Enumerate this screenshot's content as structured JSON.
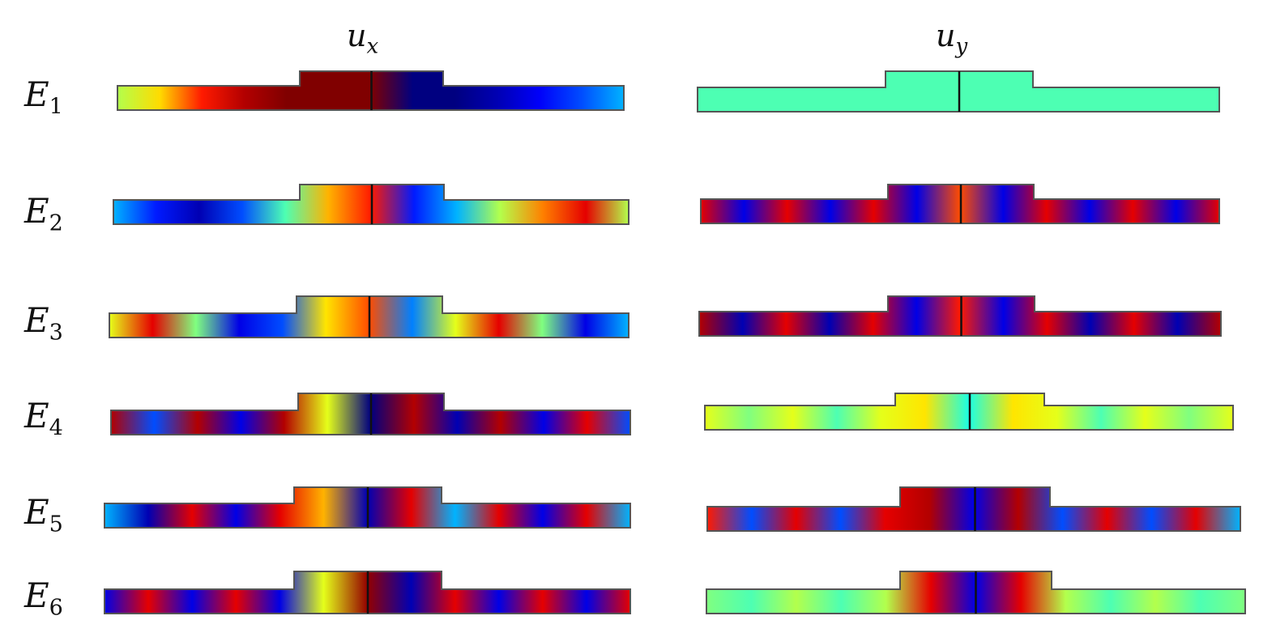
{
  "columns": [
    {
      "id": "ux",
      "label": "u",
      "subscript": "x"
    },
    {
      "id": "uy",
      "label": "u",
      "subscript": "y"
    }
  ],
  "rows": [
    {
      "label": "E",
      "subscript": "1",
      "ux": [
        0.55,
        0.66,
        0.85,
        0.95,
        1.0,
        1.0,
        1.0,
        0.0,
        0.0,
        0.05,
        0.12,
        0.2,
        0.3
      ],
      "uy": [
        0.45,
        0.45,
        0.45,
        0.45,
        0.45,
        0.45,
        0.45,
        0.45,
        0.45,
        0.45,
        0.45,
        0.45,
        0.45
      ]
    },
    {
      "label": "E",
      "subscript": "2",
      "ux": [
        0.3,
        0.15,
        0.05,
        0.2,
        0.45,
        0.7,
        0.85,
        0.15,
        0.3,
        0.55,
        0.75,
        0.9,
        0.55
      ],
      "uy": [
        0.9,
        0.1,
        0.9,
        0.1,
        0.9,
        0.1,
        0.8,
        0.1,
        0.9,
        0.1,
        0.9,
        0.1,
        0.9
      ]
    },
    {
      "label": "E",
      "subscript": "3",
      "ux": [
        0.6,
        0.9,
        0.5,
        0.1,
        0.2,
        0.65,
        0.8,
        0.25,
        0.6,
        0.9,
        0.5,
        0.1,
        0.3
      ],
      "uy": [
        0.95,
        0.05,
        0.9,
        0.05,
        0.9,
        0.1,
        0.85,
        0.1,
        0.9,
        0.05,
        0.9,
        0.05,
        0.95
      ]
    },
    {
      "label": "E",
      "subscript": "4",
      "ux": [
        0.95,
        0.2,
        0.95,
        0.1,
        0.95,
        0.6,
        0.0,
        0.95,
        0.05,
        0.95,
        0.1,
        0.9,
        0.2
      ],
      "uy": [
        0.6,
        0.5,
        0.6,
        0.45,
        0.6,
        0.65,
        0.4,
        0.65,
        0.6,
        0.45,
        0.6,
        0.5,
        0.6
      ]
    },
    {
      "label": "E",
      "subscript": "5",
      "ux": [
        0.3,
        0.05,
        0.9,
        0.1,
        0.9,
        0.7,
        0.05,
        0.9,
        0.3,
        0.9,
        0.1,
        0.9,
        0.3
      ],
      "uy": [
        0.85,
        0.2,
        0.9,
        0.2,
        0.9,
        0.95,
        0.1,
        0.95,
        0.2,
        0.9,
        0.2,
        0.9,
        0.3
      ]
    },
    {
      "label": "E",
      "subscript": "6",
      "ux": [
        0.1,
        0.9,
        0.1,
        0.9,
        0.1,
        0.6,
        0.98,
        0.05,
        0.9,
        0.1,
        0.9,
        0.1,
        0.9
      ],
      "uy": [
        0.5,
        0.45,
        0.55,
        0.45,
        0.55,
        0.9,
        0.1,
        0.9,
        0.55,
        0.45,
        0.55,
        0.45,
        0.5
      ]
    }
  ]
}
